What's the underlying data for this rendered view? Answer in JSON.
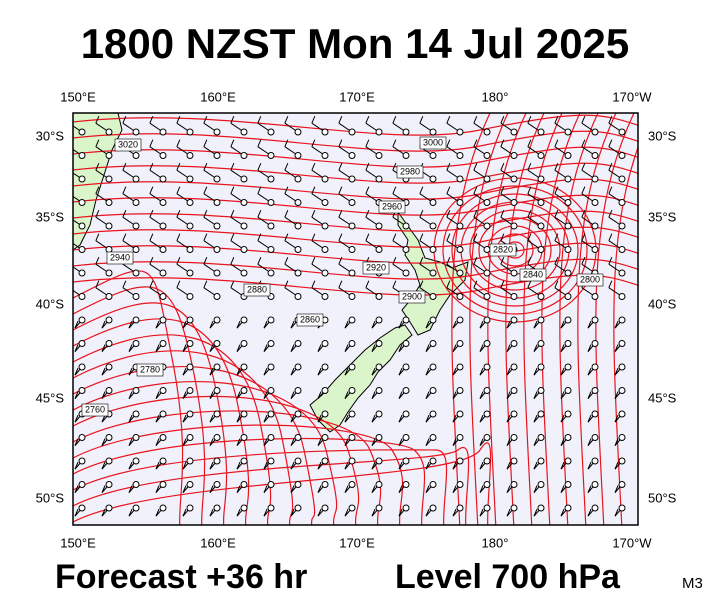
{
  "title": "1800 NZST Mon 14 Jul 2025",
  "lon_labels": [
    "150°E",
    "160°E",
    "170°E",
    "180°",
    "170°W"
  ],
  "lat_labels": [
    "30°S",
    "35°S",
    "40°S",
    "45°S",
    "50°S"
  ],
  "contour_labels": [
    "3020",
    "3000",
    "2980",
    "2960",
    "2940",
    "2920",
    "2900",
    "2880",
    "2860",
    "2840",
    "2820",
    "2800",
    "2780",
    "2760"
  ],
  "footer": {
    "forecast": "Forecast +36 hr",
    "level": "Level 700 hPa",
    "code": "M3"
  }
}
